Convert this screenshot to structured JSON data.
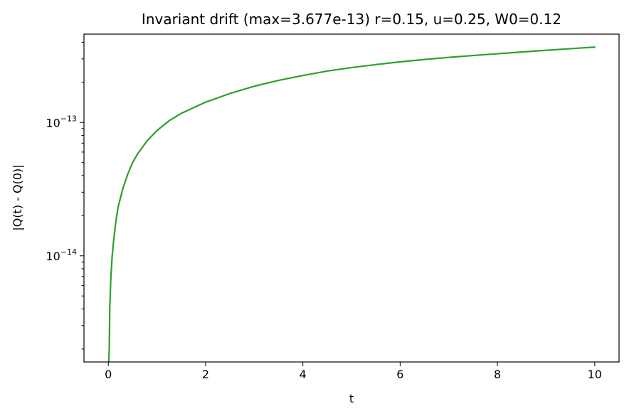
{
  "chart_data": {
    "type": "line",
    "title": "Invariant drift (max=3.677e-13)  r=0.15, u=0.25, W0=0.12",
    "xlabel": "t",
    "ylabel": "|Q(t) - Q(0)|",
    "xlim": [
      -0.5,
      10.5
    ],
    "ylim": [
      1.6e-15,
      4.6e-13
    ],
    "yscale": "log",
    "grid": false,
    "x_ticks": [
      0,
      2,
      4,
      6,
      8,
      10
    ],
    "y_ticks": [
      {
        "base": "10",
        "exp": "−14",
        "value": 1e-14
      },
      {
        "base": "10",
        "exp": "−13",
        "value": 1e-13
      }
    ],
    "series": [
      {
        "color": "#2ca02c",
        "x": [
          0.01,
          0.02,
          0.03,
          0.05,
          0.08,
          0.1,
          0.15,
          0.2,
          0.3,
          0.4,
          0.5,
          0.6,
          0.8,
          1.0,
          1.25,
          1.5,
          1.75,
          2.0,
          2.5,
          3.0,
          3.5,
          4.0,
          4.5,
          5.0,
          5.5,
          6.0,
          6.5,
          7.0,
          7.5,
          8.0,
          8.5,
          9.0,
          9.5,
          10.0
        ],
        "y": [
          1.6e-15,
          2e-15,
          4e-15,
          6.5e-15,
          1e-14,
          1.2e-14,
          1.75e-14,
          2.3e-14,
          3.2e-14,
          4.1e-14,
          5e-14,
          5.8e-14,
          7.3e-14,
          8.7e-14,
          1.03e-13,
          1.17e-13,
          1.29e-13,
          1.42e-13,
          1.65e-13,
          1.87e-13,
          2.07e-13,
          2.25e-13,
          2.43e-13,
          2.58e-13,
          2.72e-13,
          2.85e-13,
          2.97e-13,
          3.08e-13,
          3.18e-13,
          3.28e-13,
          3.38e-13,
          3.48e-13,
          3.58e-13,
          3.677e-13
        ]
      }
    ]
  }
}
